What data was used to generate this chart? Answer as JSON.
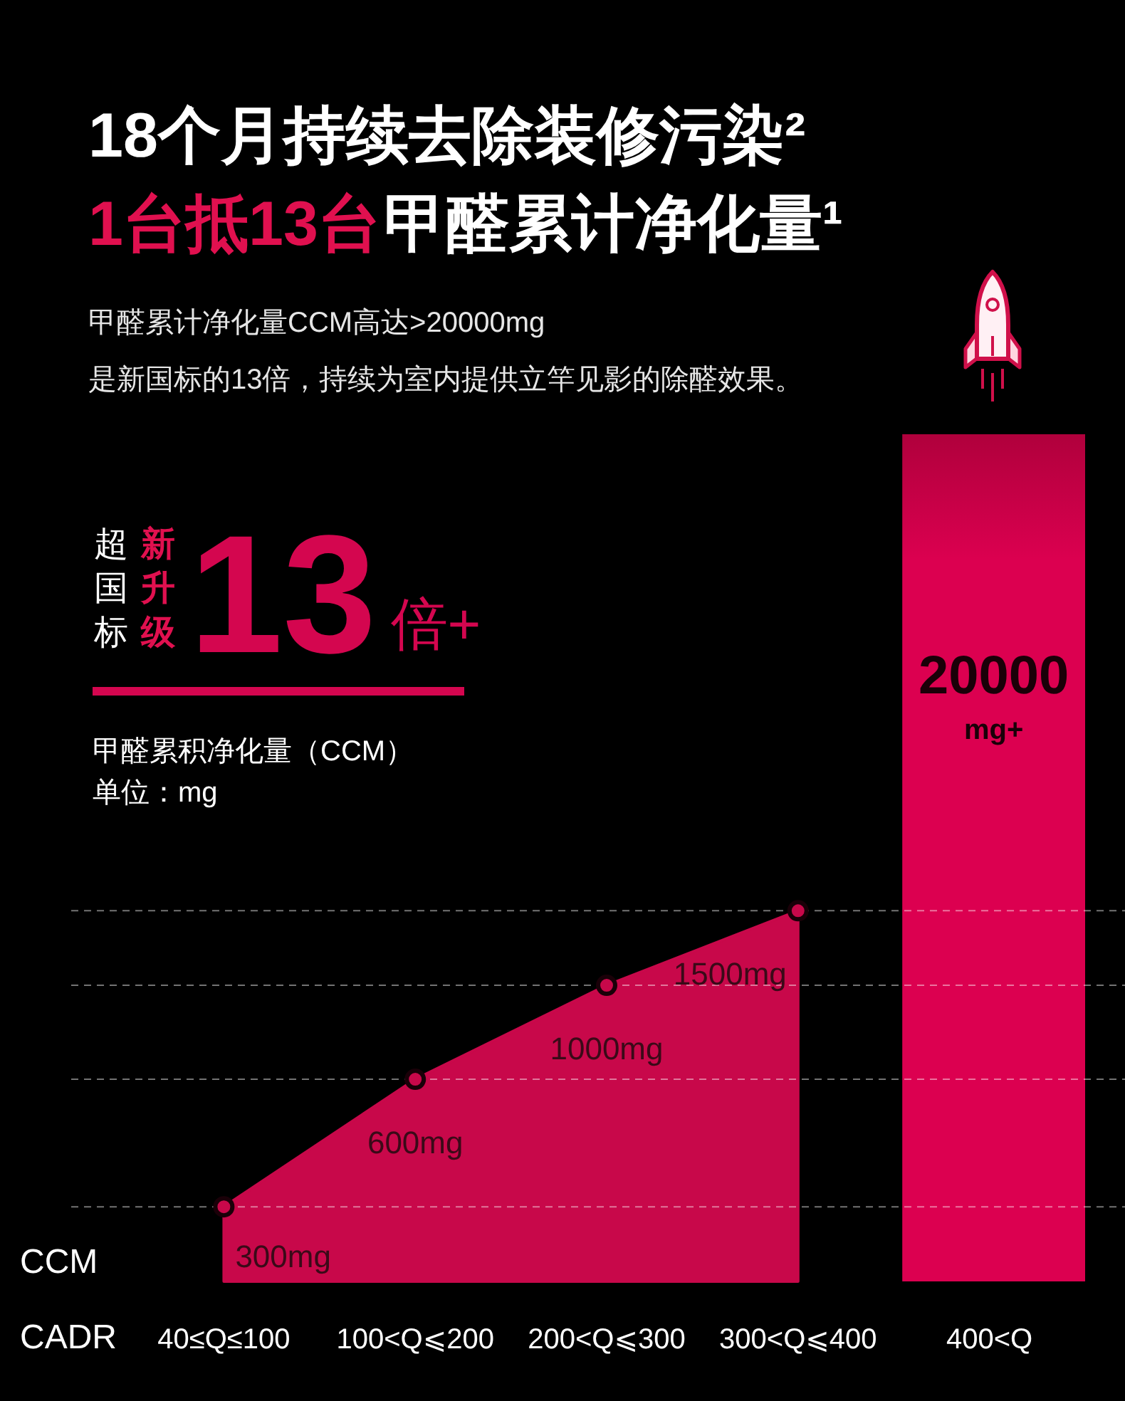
{
  "chart_data": {
    "type": "area",
    "title": "18个月持续去除装修污染²",
    "subtitle": "甲醛累计净化量CCM高达>20000mg\n是新国标的13倍，持续为室内提供立竿见影的除醛效果。",
    "xlabel": "CADR",
    "ylabel": "CCM",
    "annotations": [
      "1台抵13台",
      "甲醛累计净化量¹",
      "超国标",
      "新升级",
      "13倍+",
      "甲醛累积净化量（CCM）",
      "单位：mg"
    ],
    "categories": [
      "40≤Q≤100",
      "100<Q⩽200",
      "200<Q⩽300",
      "300<Q⩽400",
      "400<Q"
    ],
    "series": [
      {
        "color": "#c8084a",
        "values": [
          300,
          600,
          1000,
          1500,
          null
        ],
        "value_labels": [
          "300mg",
          "600mg",
          "1000mg",
          "1500mg",
          null
        ]
      },
      {
        "type": "bar",
        "color": "#dc0050",
        "values": [
          null,
          null,
          null,
          null,
          20000
        ],
        "value_labels": [
          null,
          null,
          null,
          null,
          "20000\nmg+"
        ]
      }
    ],
    "log": true,
    "ylim": [
      200,
      20000
    ],
    "yticks": [
      {
        "value": 300,
        "label": null
      },
      {
        "value": 600,
        "label": null
      },
      {
        "value": 1000,
        "label": null
      },
      {
        "value": 1500,
        "label": null
      }
    ],
    "grid": "y",
    "marker": "circle",
    "tick_labels": "x"
  }
}
